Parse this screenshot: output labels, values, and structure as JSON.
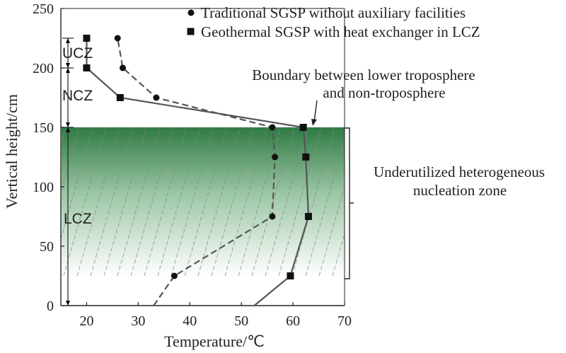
{
  "chart_data": {
    "type": "line",
    "xlabel": "Temperature/℃",
    "ylabel": "Vertical height/cm",
    "xlim": [
      15,
      70
    ],
    "ylim": [
      0,
      250
    ],
    "x_ticks": [
      20,
      30,
      40,
      50,
      60,
      70
    ],
    "y_ticks": [
      0,
      50,
      100,
      150,
      200,
      250
    ],
    "legend_position": "top-right",
    "series": [
      {
        "name": "Traditional SGSP without auxiliary facilities",
        "marker": "circle",
        "line_style": "dashed",
        "color": "#555555",
        "points": [
          {
            "x": 33,
            "y": 0
          },
          {
            "x": 37,
            "y": 25
          },
          {
            "x": 56,
            "y": 75
          },
          {
            "x": 56.5,
            "y": 125
          },
          {
            "x": 56,
            "y": 150
          },
          {
            "x": 33.5,
            "y": 175
          },
          {
            "x": 27,
            "y": 200
          },
          {
            "x": 26,
            "y": 225
          }
        ],
        "marker_indices": [
          1,
          2,
          3,
          4,
          5,
          6,
          7
        ]
      },
      {
        "name": "Geothermal SGSP with heat exchanger in LCZ",
        "marker": "square",
        "line_style": "solid",
        "color": "#555555",
        "points": [
          {
            "x": 52.5,
            "y": 0
          },
          {
            "x": 59.5,
            "y": 25
          },
          {
            "x": 63,
            "y": 75
          },
          {
            "x": 62.5,
            "y": 125
          },
          {
            "x": 62,
            "y": 150
          },
          {
            "x": 26.5,
            "y": 175
          },
          {
            "x": 20,
            "y": 200
          },
          {
            "x": 20,
            "y": 225
          }
        ],
        "marker_indices": [
          1,
          2,
          3,
          4,
          5,
          6,
          7
        ]
      }
    ],
    "annotations": {
      "boundary_line1": "Boundary between lower troposphere",
      "boundary_line2": "and non-troposphere",
      "zone_line1": "Underutilized heterogeneous",
      "zone_line2": "nucleation zone",
      "ucz": "UCZ",
      "ncz": "NCZ",
      "lcz": "LCZ"
    },
    "zones": {
      "ucz": [
        200,
        225
      ],
      "ncz": [
        150,
        200
      ],
      "lcz": [
        0,
        150
      ],
      "shaded_y_range": [
        25,
        150
      ]
    },
    "colors": {
      "shade_top": "#2f7a43",
      "shade_bottom": "#ffffff",
      "line": "#555555",
      "marker": "#111111"
    }
  }
}
